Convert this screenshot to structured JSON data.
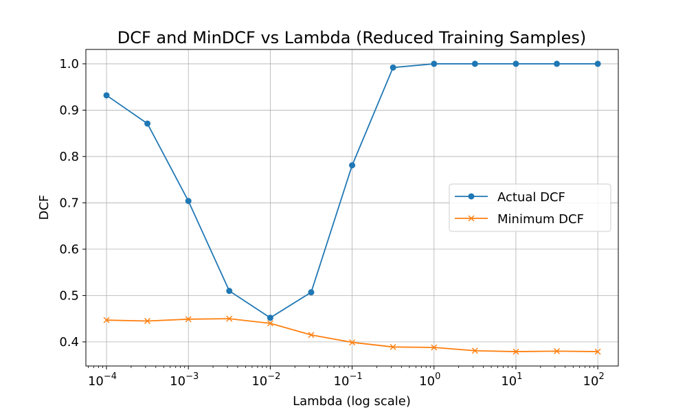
{
  "chart_data": {
    "type": "line",
    "title": "DCF and MinDCF vs Lambda (Reduced Training Samples)",
    "xlabel": "Lambda (log scale)",
    "ylabel": "DCF",
    "x_scale": "log",
    "xlim": [
      5.6e-05,
      178
    ],
    "ylim": [
      0.348,
      1.031
    ],
    "x": [
      0.0001,
      0.000316,
      0.001,
      0.00316,
      0.01,
      0.0316,
      0.1,
      0.316,
      1,
      3.16,
      10,
      31.6,
      100
    ],
    "x_ticks": [
      {
        "value": 0.0001,
        "base": "10",
        "exp": "−4"
      },
      {
        "value": 0.001,
        "base": "10",
        "exp": "−3"
      },
      {
        "value": 0.01,
        "base": "10",
        "exp": "−2"
      },
      {
        "value": 0.1,
        "base": "10",
        "exp": "−1"
      },
      {
        "value": 1,
        "base": "10",
        "exp": "0"
      },
      {
        "value": 10,
        "base": "10",
        "exp": "1"
      },
      {
        "value": 100,
        "base": "10",
        "exp": "2"
      }
    ],
    "y_ticks": [
      {
        "value": 0.4,
        "label": "0.4"
      },
      {
        "value": 0.5,
        "label": "0.5"
      },
      {
        "value": 0.6,
        "label": "0.6"
      },
      {
        "value": 0.7,
        "label": "0.7"
      },
      {
        "value": 0.8,
        "label": "0.8"
      },
      {
        "value": 0.9,
        "label": "0.9"
      },
      {
        "value": 1.0,
        "label": "1.0"
      }
    ],
    "grid": true,
    "legend_position": "center-right",
    "series": [
      {
        "name": "Actual DCF",
        "color": "#1f77b4",
        "marker": "circle",
        "values": [
          0.932,
          0.871,
          0.704,
          0.51,
          0.452,
          0.507,
          0.781,
          0.992,
          1.0,
          1.0,
          1.0,
          1.0,
          1.0
        ]
      },
      {
        "name": "Minimum DCF",
        "color": "#ff7f0e",
        "marker": "x",
        "values": [
          0.447,
          0.445,
          0.449,
          0.45,
          0.44,
          0.415,
          0.399,
          0.389,
          0.388,
          0.381,
          0.379,
          0.38,
          0.379
        ]
      }
    ]
  }
}
